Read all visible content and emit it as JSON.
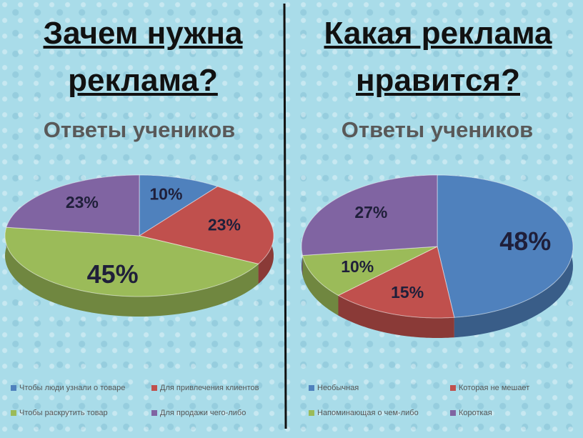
{
  "chart_data": [
    {
      "type": "pie",
      "title": "Зачем нужна реклама?",
      "subtitle": "Ответы учеников",
      "categories": [
        "Чтобы люди узнали о товаре",
        "Для привлечения  клиентов",
        "Чтобы раскрутить товар",
        "Для продажи чего-либо"
      ],
      "values": [
        10,
        23,
        45,
        23
      ],
      "value_labels": [
        "10%",
        "23%",
        "45%",
        "23%"
      ],
      "colors": [
        "#4f81bd",
        "#c0504d",
        "#9bbb59",
        "#8064a2"
      ]
    },
    {
      "type": "pie",
      "title": "Какая  реклама нравится?",
      "subtitle": "Ответы учеников",
      "categories": [
        "Необычная",
        "Которая не мешает",
        "Напоминающая о чем-либо",
        "Короткая"
      ],
      "values": [
        48,
        15,
        10,
        27
      ],
      "value_labels": [
        "48%",
        "15%",
        "10%",
        "27%"
      ],
      "colors": [
        "#4f81bd",
        "#c0504d",
        "#9bbb59",
        "#8064a2"
      ]
    }
  ]
}
